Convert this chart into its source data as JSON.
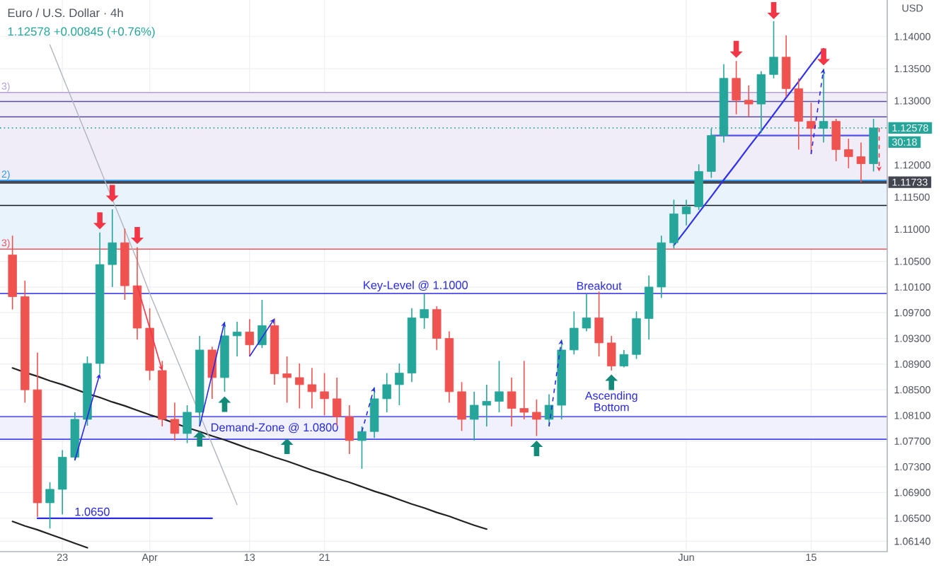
{
  "chart_data": {
    "type": "candlestick",
    "title": "Euro / U.S. Dollar · 4h",
    "subtitle": "1.12578 +0.00845 (+0.76%)",
    "ylabel": "USD",
    "categories": [
      null,
      null,
      null,
      null,
      "23",
      null,
      null,
      null,
      null,
      null,
      null,
      "Apr",
      null,
      null,
      null,
      null,
      null,
      null,
      null,
      "13",
      null,
      null,
      null,
      null,
      null,
      "21",
      null,
      null,
      null,
      null,
      null,
      null,
      null,
      null,
      null,
      null,
      null,
      null,
      null,
      null,
      null,
      null,
      null,
      null,
      null,
      null,
      null,
      null,
      null,
      null,
      null,
      null,
      null,
      null,
      "Jun",
      null,
      null,
      null,
      null,
      null,
      null,
      null,
      null,
      null,
      "15",
      null,
      null,
      null,
      null,
      null
    ],
    "ohlc": [
      [
        1.106,
        1.109,
        1.0975,
        1.0995
      ],
      [
        1.0995,
        1.102,
        1.083,
        1.085
      ],
      [
        1.085,
        1.0908,
        1.0652,
        1.0674
      ],
      [
        1.0674,
        1.0706,
        1.0634,
        1.0695
      ],
      [
        1.0695,
        1.0756,
        1.0656,
        1.0745
      ],
      [
        1.0745,
        1.0815,
        1.074,
        1.0804
      ],
      [
        1.0804,
        1.0902,
        1.0794,
        1.0891
      ],
      [
        1.0891,
        1.1095,
        1.0875,
        1.1045
      ],
      [
        1.1045,
        1.1131,
        1.101,
        1.1079
      ],
      [
        1.1079,
        1.1101,
        1.099,
        1.1012
      ],
      [
        1.1012,
        1.1072,
        1.0928,
        1.0946
      ],
      [
        1.0946,
        1.0977,
        1.0865,
        1.088
      ],
      [
        1.088,
        1.0895,
        1.0793,
        1.0804
      ],
      [
        1.0804,
        1.083,
        1.0771,
        1.0782
      ],
      [
        1.0782,
        1.0826,
        1.0767,
        1.0815
      ],
      [
        1.0815,
        1.0934,
        1.0793,
        1.0912
      ],
      [
        1.0912,
        1.0917,
        1.0836,
        1.0869
      ],
      [
        1.0869,
        1.0956,
        1.0847,
        1.0934
      ],
      [
        1.0934,
        1.0956,
        1.0902,
        1.094
      ],
      [
        1.094,
        1.096,
        1.0902,
        1.092
      ],
      [
        1.092,
        1.099,
        1.0915,
        1.095
      ],
      [
        1.095,
        1.0961,
        1.0858,
        1.0875
      ],
      [
        1.0875,
        1.0902,
        1.083,
        1.0869
      ],
      [
        1.0869,
        1.0891,
        1.0821,
        1.0858
      ],
      [
        1.0858,
        1.0884,
        1.0821,
        1.0847
      ],
      [
        1.0847,
        1.0876,
        1.081,
        1.0836
      ],
      [
        1.0836,
        1.0869,
        1.0793,
        1.0808
      ],
      [
        1.0808,
        1.0826,
        1.075,
        1.0771
      ],
      [
        1.0771,
        1.0793,
        1.0727,
        1.0785
      ],
      [
        1.0785,
        1.0854,
        1.0775,
        1.0836
      ],
      [
        1.0836,
        1.0876,
        1.0815,
        1.0858
      ],
      [
        1.0858,
        1.0891,
        1.0826,
        1.0876
      ],
      [
        1.0876,
        1.0977,
        1.0862,
        1.0962
      ],
      [
        1.0962,
        1.0999,
        1.0945,
        1.0975
      ],
      [
        1.0975,
        1.098,
        1.0912,
        1.093
      ],
      [
        1.093,
        1.0941,
        1.083,
        1.0847
      ],
      [
        1.0847,
        1.0862,
        1.0786,
        1.0804
      ],
      [
        1.0804,
        1.0847,
        1.0771,
        1.0826
      ],
      [
        1.0826,
        1.0858,
        1.0793,
        1.0832
      ],
      [
        1.0832,
        1.0895,
        1.0815,
        1.0847
      ],
      [
        1.0847,
        1.0869,
        1.0793,
        1.0821
      ],
      [
        1.0821,
        1.0895,
        1.0804,
        1.0815
      ],
      [
        1.0815,
        1.0835,
        1.0778,
        1.0804
      ],
      [
        1.0804,
        1.0843,
        1.0793,
        1.0826
      ],
      [
        1.0826,
        1.0928,
        1.0804,
        1.0912
      ],
      [
        1.0912,
        1.0972,
        1.0905,
        1.0946
      ],
      [
        1.0946,
        1.0999,
        1.0941,
        1.0962
      ],
      [
        1.0962,
        1.1003,
        1.0902,
        1.0923
      ],
      [
        1.0923,
        1.0934,
        1.088,
        1.0887
      ],
      [
        1.0887,
        1.0912,
        1.0885,
        1.0905
      ],
      [
        1.0905,
        1.0972,
        1.0898,
        1.0961
      ],
      [
        1.0961,
        1.1028,
        1.0928,
        1.101
      ],
      [
        1.101,
        1.109,
        1.0993,
        1.1079
      ],
      [
        1.1079,
        1.1146,
        1.107,
        1.1124
      ],
      [
        1.1124,
        1.1146,
        1.1106,
        1.1135
      ],
      [
        1.1135,
        1.1201,
        1.113,
        1.119
      ],
      [
        1.119,
        1.1257,
        1.118,
        1.1246
      ],
      [
        1.1246,
        1.1357,
        1.1235,
        1.1335
      ],
      [
        1.1335,
        1.1362,
        1.1279,
        1.1301
      ],
      [
        1.1301,
        1.1324,
        1.1275,
        1.1295
      ],
      [
        1.1295,
        1.1346,
        1.125,
        1.1341
      ],
      [
        1.1341,
        1.1424,
        1.1335,
        1.1368
      ],
      [
        1.1368,
        1.1402,
        1.1306,
        1.1319
      ],
      [
        1.1319,
        1.1335,
        1.1224,
        1.1268
      ],
      [
        1.1268,
        1.1297,
        1.1217,
        1.1257
      ],
      [
        1.1257,
        1.135,
        1.1235,
        1.1268
      ],
      [
        1.1268,
        1.1272,
        1.1206,
        1.1224
      ],
      [
        1.1224,
        1.1241,
        1.1195,
        1.1213
      ],
      [
        1.1213,
        1.1235,
        1.1173,
        1.1202
      ],
      [
        1.1202,
        1.1272,
        1.119,
        1.12578
      ]
    ],
    "colors": [
      "#ef5350",
      "#ef5350",
      "#ef5350",
      "#26a69a",
      "#26a69a",
      "#26a69a",
      "#26a69a",
      "#26a69a",
      "#26a69a",
      "#ef5350",
      "#ef5350",
      "#ef5350",
      "#ef5350",
      "#ef5350",
      "#26a69a",
      "#26a69a",
      "#ef5350",
      "#26a69a",
      "#26a69a",
      "#ef5350",
      "#26a69a",
      "#ef5350",
      "#ef5350",
      "#ef5350",
      "#ef5350",
      "#ef5350",
      "#ef5350",
      "#ef5350",
      "#26a69a",
      "#26a69a",
      "#26a69a",
      "#26a69a",
      "#26a69a",
      "#26a69a",
      "#ef5350",
      "#ef5350",
      "#ef5350",
      "#26a69a",
      "#26a69a",
      "#26a69a",
      "#ef5350",
      "#ef5350",
      "#ef5350",
      "#26a69a",
      "#26a69a",
      "#26a69a",
      "#26a69a",
      "#ef5350",
      "#ef5350",
      "#26a69a",
      "#26a69a",
      "#26a69a",
      "#26a69a",
      "#26a69a",
      "#26a69a",
      "#26a69a",
      "#26a69a",
      "#26a69a",
      "#ef5350",
      "#ef5350",
      "#26a69a",
      "#26a69a",
      "#ef5350",
      "#ef5350",
      "#ef5350",
      "#26a69a",
      "#ef5350",
      "#ef5350",
      "#ef5350",
      "#26a69a"
    ],
    "ylim": [
      1.0598,
      1.1457
    ],
    "yticks": [
      {
        "value": 1.14,
        "label": "1.14000"
      },
      {
        "value": 1.135,
        "label": "1.13500"
      },
      {
        "value": 1.13,
        "label": "1.13000"
      },
      {
        "value": 1.12,
        "label": "1.12000"
      },
      {
        "value": 1.115,
        "label": "1.11500"
      },
      {
        "value": 1.11,
        "label": "1.11000"
      },
      {
        "value": 1.105,
        "label": "1.10500"
      },
      {
        "value": 1.101,
        "label": "1.10100"
      },
      {
        "value": 1.097,
        "label": "1.09700"
      },
      {
        "value": 1.093,
        "label": "1.09300"
      },
      {
        "value": 1.089,
        "label": "1.08900"
      },
      {
        "value": 1.085,
        "label": "1.08500"
      },
      {
        "value": 1.081,
        "label": "1.08100"
      },
      {
        "value": 1.077,
        "label": "1.07700"
      },
      {
        "value": 1.073,
        "label": "1.07300"
      },
      {
        "value": 1.069,
        "label": "1.06900"
      },
      {
        "value": 1.065,
        "label": "1.06500"
      },
      {
        "value": 1.0614,
        "label": "1.06140"
      }
    ],
    "grid": true,
    "series": [
      {
        "type": "line",
        "color": "#222222",
        "values": [
          1.0884,
          1.0877,
          1.0871,
          1.0864,
          1.0858,
          1.0851,
          1.0844,
          1.0838,
          1.0831,
          1.0825,
          1.0818,
          1.0811,
          1.0805,
          1.0798,
          1.0791,
          1.0785,
          1.0778,
          1.0772,
          1.0765,
          1.0758,
          1.0752,
          1.0745,
          1.0739,
          1.0732,
          1.0725,
          1.0719,
          1.0712,
          1.0706,
          1.0699,
          1.0692,
          1.0686,
          1.0679,
          1.0672,
          1.0666,
          1.0659,
          1.0653,
          1.0646,
          1.0639,
          1.0633,
          null,
          null,
          null,
          null,
          null,
          null,
          null,
          null,
          null,
          null,
          null,
          null,
          null,
          null,
          null,
          null,
          null,
          null,
          null,
          null,
          null,
          null,
          null,
          null,
          null,
          null,
          null,
          null,
          null,
          null,
          null
        ]
      },
      {
        "type": "line",
        "color": "#222222",
        "values": [
          1.0645,
          1.0638,
          1.0632,
          1.0625,
          1.0618,
          1.0611,
          1.0604,
          null,
          null,
          null,
          null,
          null,
          null,
          null,
          null,
          null,
          null,
          null,
          null,
          null,
          null,
          null,
          null,
          null,
          null,
          null,
          null,
          null,
          null,
          null,
          null,
          null,
          null,
          null,
          null,
          null,
          null,
          null,
          null,
          null,
          null,
          null,
          null,
          null,
          null,
          null,
          null,
          null,
          null,
          null,
          null,
          null,
          null,
          null,
          null,
          null,
          null,
          null,
          null,
          null,
          null,
          null,
          null,
          null,
          null,
          null,
          null,
          null,
          null,
          null
        ]
      },
      {
        "type": "line",
        "color": "#b2b5be",
        "values": [
          null,
          null,
          null,
          1.1387,
          1.1339,
          1.1291,
          1.1243,
          1.1195,
          1.1147,
          1.1099,
          1.1051,
          1.1,
          1.0953,
          1.0906,
          1.0859,
          1.0812,
          1.0765,
          1.0718,
          1.0671,
          null,
          null,
          null,
          null,
          null,
          null,
          null,
          null,
          null,
          null,
          null,
          null,
          null,
          null,
          null,
          null,
          null,
          null,
          null,
          null,
          null,
          null,
          null,
          null,
          null,
          null,
          null,
          null,
          null,
          null,
          null,
          null,
          null,
          null,
          null,
          null,
          null,
          null,
          null,
          null,
          null,
          null,
          null,
          null,
          null,
          null,
          null,
          null,
          null,
          null,
          null
        ]
      },
      {
        "type": "line",
        "color": "#3030f0",
        "values": [
          null,
          null,
          null,
          null,
          null,
          null,
          null,
          null,
          null,
          null,
          null,
          null,
          null,
          null,
          null,
          null,
          null,
          null,
          null,
          null,
          null,
          null,
          null,
          null,
          null,
          null,
          null,
          null,
          null,
          null,
          null,
          null,
          null,
          null,
          null,
          null,
          null,
          null,
          null,
          null,
          null,
          null,
          null,
          null,
          null,
          null,
          null,
          null,
          null,
          null,
          null,
          null,
          null,
          1.1075,
          1.11,
          1.1126,
          1.1151,
          1.1177,
          1.1202,
          1.1228,
          1.1253,
          1.1279,
          1.1305,
          1.133,
          1.1356,
          1.1381,
          null,
          null,
          null,
          null
        ]
      },
      {
        "type": "line",
        "name": "1.0650",
        "color": "#2a2ae6",
        "values": [
          null,
          null,
          1.065,
          1.065,
          1.065,
          1.065,
          1.065,
          1.065,
          1.065,
          1.065,
          1.065,
          1.065,
          1.065,
          1.065,
          1.065,
          1.065,
          1.065,
          null,
          null,
          null,
          null,
          null,
          null,
          null,
          null,
          null,
          null,
          null,
          null,
          null,
          null,
          null,
          null,
          null,
          null,
          null,
          null,
          null,
          null,
          null,
          null,
          null,
          null,
          null,
          null,
          null,
          null,
          null,
          null,
          null,
          null,
          null,
          null,
          null,
          null,
          null,
          null,
          null,
          null,
          null,
          null,
          null,
          null,
          null,
          null,
          null,
          null,
          null,
          null,
          null
        ]
      },
      {
        "type": "line",
        "color": "#5050f0",
        "values": [
          null,
          null,
          null,
          null,
          null,
          null,
          null,
          null,
          null,
          null,
          null,
          null,
          null,
          null,
          null,
          null,
          null,
          null,
          null,
          null,
          null,
          null,
          null,
          null,
          null,
          null,
          null,
          null,
          null,
          null,
          null,
          null,
          null,
          null,
          null,
          null,
          null,
          null,
          null,
          null,
          null,
          null,
          null,
          null,
          null,
          null,
          null,
          null,
          null,
          null,
          null,
          null,
          null,
          null,
          null,
          null,
          1.1246,
          1.1246,
          1.1246,
          1.1246,
          1.1246,
          1.1246,
          1.1246,
          1.1246,
          1.1246,
          1.1246,
          1.1246,
          1.1246,
          1.1246,
          1.1246
        ]
      }
    ],
    "ref_lines": [
      {
        "axis": "y",
        "value": 1.12578,
        "label": "1.12578",
        "color": "#26a69a",
        "line_style": "dotted"
      },
      {
        "axis": "y",
        "value": 1.11733,
        "label": "1.11733",
        "color": "#434651"
      },
      {
        "axis": "y",
        "value": 1.1313,
        "color": "#b39ddb"
      },
      {
        "axis": "y",
        "value": 1.1299,
        "color": "#5b4e9a"
      },
      {
        "axis": "y",
        "value": 1.1275,
        "color": "#5b4e9a"
      },
      {
        "axis": "y",
        "value": 1.1176,
        "color": "#2196f3"
      },
      {
        "axis": "y",
        "value": 1.1137,
        "color": "#131722"
      },
      {
        "axis": "y",
        "value": 1.1069,
        "color": "#f7525f"
      },
      {
        "axis": "y",
        "value": 1.1,
        "label": "Key-Level @ 1.1000",
        "color": "#2a2ae6"
      },
      {
        "axis": "y",
        "value": 1.0808,
        "color": "#4646f0"
      },
      {
        "axis": "y",
        "value": 1.0773,
        "color": "#4646f0"
      }
    ],
    "bands": [
      {
        "axis": "y",
        "from": 1.1176,
        "to": 1.1313,
        "color": "#f1edf8"
      },
      {
        "axis": "y",
        "from": 1.1069,
        "to": 1.1176,
        "color": "#e8f3fc"
      },
      {
        "axis": "y",
        "from": 1.0773,
        "to": 1.0808,
        "label": "Demand-Zone @ 1.0800",
        "color": "#f0f1fd"
      }
    ],
    "annotations": [
      "Breakout",
      "Ascending Bottom",
      "30:18",
      {
        "text": "3)",
        "y": 1.1313
      },
      {
        "text": "2)",
        "y": 1.1176
      },
      {
        "text": "3)",
        "y": 1.1069
      }
    ]
  }
}
